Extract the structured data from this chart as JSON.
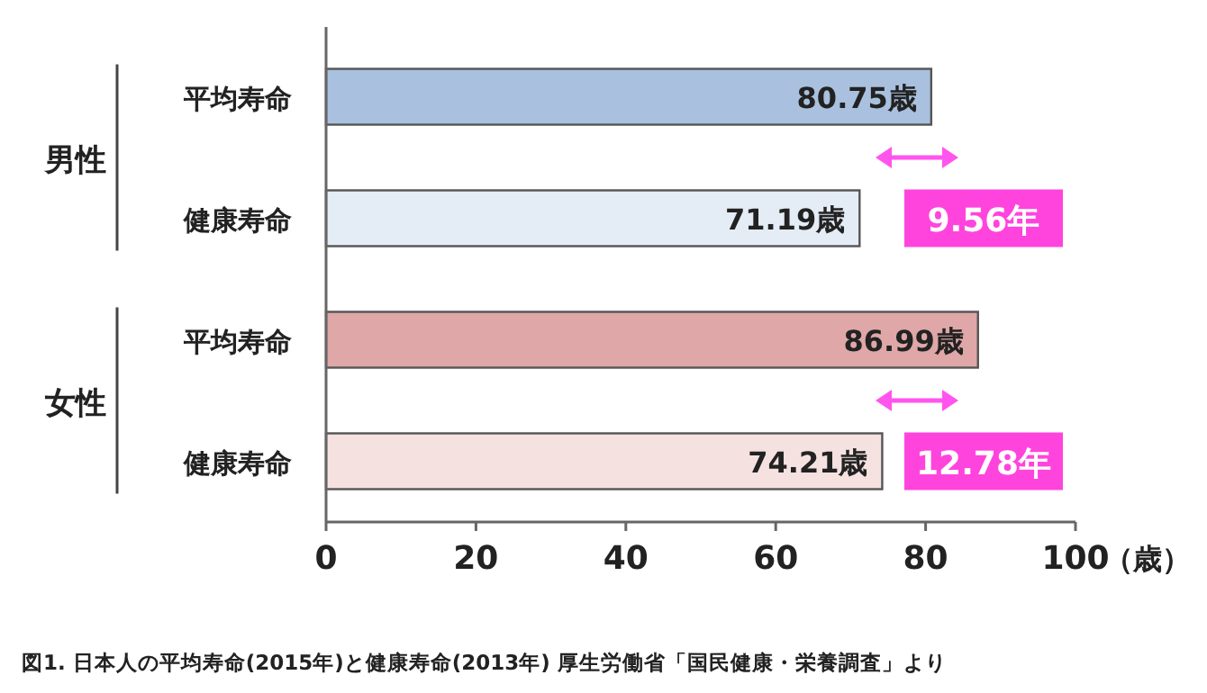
{
  "chart_data": {
    "type": "bar",
    "orientation": "horizontal",
    "categories": [
      "平均寿命",
      "健康寿命",
      "平均寿命",
      "健康寿命"
    ],
    "values": [
      80.75,
      71.19,
      86.99,
      74.21
    ],
    "colors": [
      "#a9c1de",
      "#e4ecf6",
      "#dfa7a7",
      "#f6e1e1"
    ],
    "value_labels": [
      "80.75歳",
      "71.19歳",
      "86.99歳",
      "74.21歳"
    ],
    "xlim": [
      0,
      100
    ],
    "xticks": [
      0,
      20,
      40,
      60,
      80,
      100
    ],
    "xlabel": "（歳）",
    "annotations": [
      "男性",
      "女性",
      "9.56年",
      "12.78年",
      "図1. 日本人の平均寿命(2015年)と健康寿命(2013年) 厚生労働省「国民健康・栄養調査」より"
    ],
    "grid": false
  }
}
